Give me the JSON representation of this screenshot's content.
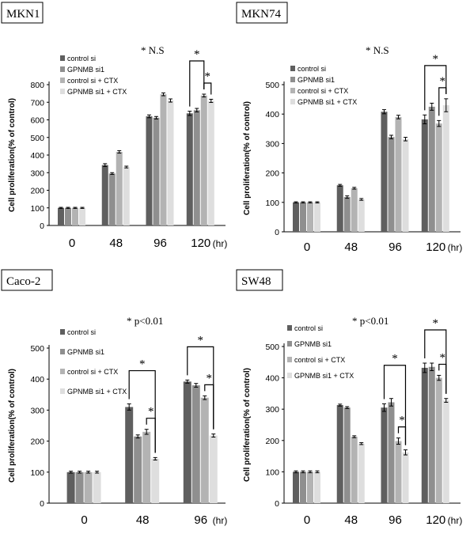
{
  "colors": {
    "control_si": "#5f5f5f",
    "gpnmb_si1": "#8f8f8f",
    "control_si_ctx": "#b3b3b3",
    "gpnmb_si1_ctx": "#dedede"
  },
  "chart_data": [
    {
      "type": "bar",
      "title": "MKN1",
      "ylabel": "Cell proliferation(% of control)",
      "xlabel": "",
      "x_unit": "(hr)",
      "annotation": "* N.S",
      "categories": [
        "0",
        "48",
        "96",
        "120"
      ],
      "ylim": [
        0,
        800
      ],
      "yticks": [
        "0",
        "100",
        "200",
        "300",
        "400",
        "500",
        "600",
        "700",
        "800"
      ],
      "legend_position": "top-left",
      "series": [
        {
          "name": "control si",
          "values": [
            100,
            343,
            620,
            637
          ],
          "errors": [
            3,
            8,
            8,
            12
          ]
        },
        {
          "name": "GPNMB si1",
          "values": [
            100,
            295,
            612,
            655
          ],
          "errors": [
            3,
            5,
            7,
            10
          ]
        },
        {
          "name": "control si + CTX",
          "values": [
            100,
            418,
            745,
            738
          ],
          "errors": [
            3,
            7,
            8,
            8
          ]
        },
        {
          "name": "GPNMB si1 + CTX",
          "values": [
            100,
            332,
            710,
            708
          ],
          "errors": [
            3,
            5,
            9,
            9
          ]
        }
      ],
      "significance": [
        {
          "category": "120",
          "from_series": 0,
          "to_series": 2,
          "label": "*"
        },
        {
          "category": "120",
          "from_series": 2,
          "to_series": 3,
          "label": "*"
        }
      ]
    },
    {
      "type": "bar",
      "title": "MKN74",
      "ylabel": "Cell proliferation(% of control)",
      "xlabel": "",
      "x_unit": "(hr)",
      "annotation": "* N.S",
      "categories": [
        "0",
        "48",
        "96",
        "120"
      ],
      "ylim": [
        0,
        500
      ],
      "yticks": [
        "0",
        "100",
        "200",
        "300",
        "400",
        "500"
      ],
      "legend_position": "top-left",
      "series": [
        {
          "name": "control si",
          "values": [
            100,
            158,
            408,
            382
          ],
          "errors": [
            2,
            3,
            7,
            15
          ]
        },
        {
          "name": "GPNMB si1",
          "values": [
            100,
            118,
            322,
            425
          ],
          "errors": [
            2,
            4,
            6,
            12
          ]
        },
        {
          "name": "control si + CTX",
          "values": [
            100,
            148,
            390,
            368
          ],
          "errors": [
            2,
            3,
            6,
            10
          ]
        },
        {
          "name": "GPNMB si1 + CTX",
          "values": [
            100,
            110,
            315,
            430
          ],
          "errors": [
            2,
            3,
            6,
            22
          ]
        }
      ],
      "significance": [
        {
          "category": "120",
          "from_series": 0,
          "to_series": 3,
          "label": "*"
        },
        {
          "category": "120",
          "from_series": 2,
          "to_series": 3,
          "label": "*"
        }
      ]
    },
    {
      "type": "bar",
      "title": "Caco-2",
      "ylabel": "Cell proliferation(% of control)",
      "xlabel": "",
      "x_unit": "(hr)",
      "annotation": "* p<0.01",
      "categories": [
        "0",
        "48",
        "96"
      ],
      "ylim": [
        0,
        500
      ],
      "yticks": [
        "0",
        "100",
        "200",
        "300",
        "400",
        "500"
      ],
      "legend_position": "top-left",
      "series": [
        {
          "name": "control si",
          "values": [
            100,
            310,
            392
          ],
          "errors": [
            3,
            10,
            5
          ]
        },
        {
          "name": "GPNMB si1",
          "values": [
            100,
            215,
            380
          ],
          "errors": [
            3,
            5,
            6
          ]
        },
        {
          "name": "control si + CTX",
          "values": [
            100,
            230,
            340
          ],
          "errors": [
            3,
            8,
            6
          ]
        },
        {
          "name": "GPNMB si1 + CTX",
          "values": [
            100,
            143,
            218
          ],
          "errors": [
            3,
            4,
            5
          ]
        }
      ],
      "significance": [
        {
          "category": "48",
          "from_series": 0,
          "to_series": 3,
          "label": "*"
        },
        {
          "category": "48",
          "from_series": 2,
          "to_series": 3,
          "label": "*"
        },
        {
          "category": "96",
          "from_series": 0,
          "to_series": 3,
          "label": "*"
        },
        {
          "category": "96",
          "from_series": 2,
          "to_series": 3,
          "label": "*"
        }
      ]
    },
    {
      "type": "bar",
      "title": "SW48",
      "ylabel": "Cell proliferation(% of control)",
      "xlabel": "",
      "x_unit": "(hr)",
      "annotation": "* p<0.01",
      "categories": [
        "0",
        "48",
        "96",
        "120"
      ],
      "ylim": [
        0,
        500
      ],
      "yticks": [
        "0",
        "100",
        "200",
        "300",
        "400",
        "500"
      ],
      "legend_position": "top-left",
      "series": [
        {
          "name": "control si",
          "values": [
            100,
            313,
            305,
            432
          ],
          "errors": [
            3,
            3,
            12,
            15
          ]
        },
        {
          "name": "GPNMB si1",
          "values": [
            100,
            305,
            322,
            435
          ],
          "errors": [
            3,
            3,
            12,
            12
          ]
        },
        {
          "name": "control si + CTX",
          "values": [
            100,
            212,
            198,
            400
          ],
          "errors": [
            3,
            3,
            10,
            8
          ]
        },
        {
          "name": "GPNMB si1 + CTX",
          "values": [
            100,
            190,
            162,
            328
          ],
          "errors": [
            3,
            3,
            8,
            6
          ]
        }
      ],
      "significance": [
        {
          "category": "96",
          "from_series": 0,
          "to_series": 3,
          "label": "*"
        },
        {
          "category": "96",
          "from_series": 2,
          "to_series": 3,
          "label": "*"
        },
        {
          "category": "120",
          "from_series": 0,
          "to_series": 3,
          "label": "*"
        },
        {
          "category": "120",
          "from_series": 2,
          "to_series": 3,
          "label": "*"
        }
      ]
    }
  ]
}
